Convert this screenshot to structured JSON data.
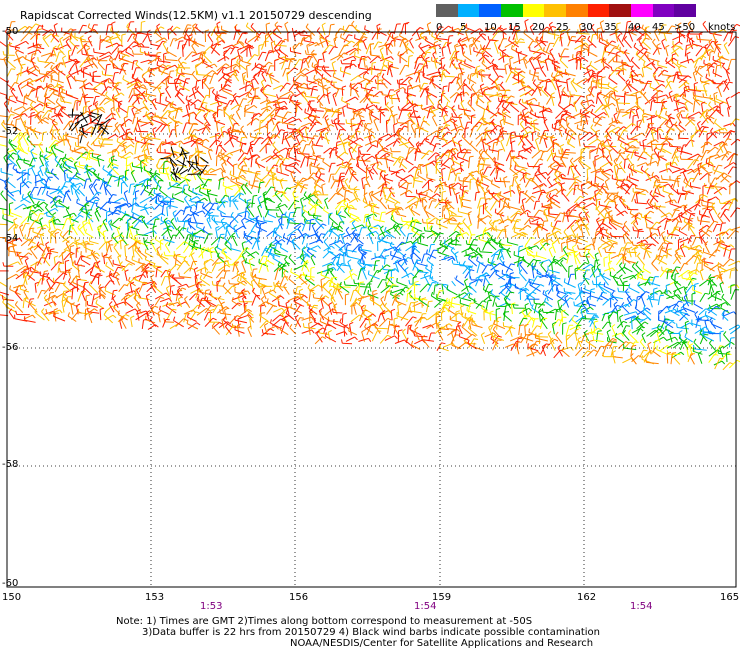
{
  "header": {
    "title": "Rapidscat Corrected Winds(12.5KM) v1.1 20150729 descending"
  },
  "legend": {
    "units": "knots",
    "labels": [
      "0",
      "5",
      "10",
      "15",
      "20",
      "25",
      "30",
      "35",
      "40",
      "45",
      ">50"
    ],
    "colors": [
      "#606060",
      "#00b0ff",
      "#0060ff",
      "#00c000",
      "#ffff00",
      "#ffc000",
      "#ff8000",
      "#ff2000",
      "#a01010",
      "#ff00ff",
      "#8000c0",
      "#6000a0"
    ]
  },
  "map": {
    "lon_labels": [
      "150",
      "153",
      "156",
      "159",
      "162",
      "165"
    ],
    "lat_labels": [
      "-50",
      "-52",
      "-54",
      "-56",
      "-58",
      "-60"
    ],
    "time_labels": [
      "1:53",
      "1:54",
      "1:54"
    ],
    "contamination_color": "#000000"
  },
  "footer": {
    "note_line1": "Note: 1) Times are GMT 2)Times along bottom correspond to measurement at -50S",
    "note_line2": "3)Data buffer is 22 hrs from 20150729 4) Black wind barbs indicate possible contamination",
    "note_line3": "NOAA/NESDIS/Center for Satellite Applications and Research"
  }
}
